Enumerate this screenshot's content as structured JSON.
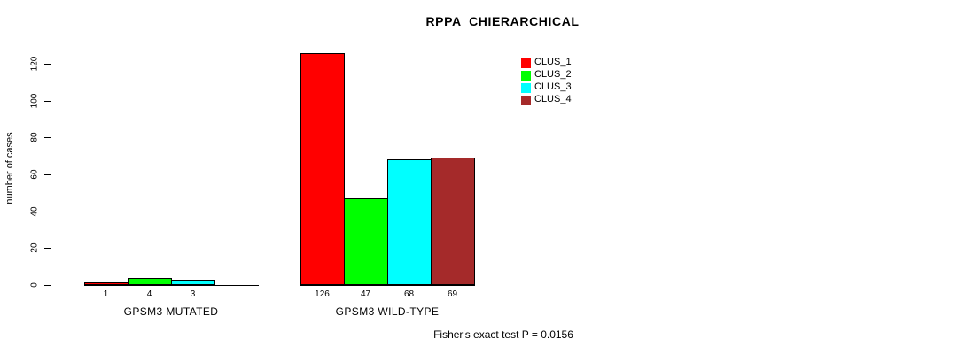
{
  "title": "RPPA_CHIERARCHICAL",
  "chart_data": {
    "type": "bar",
    "title": "RPPA_CHIERARCHICAL",
    "ylabel": "number of cases",
    "xlabel": "",
    "ylim": [
      0,
      120
    ],
    "yticks": [
      0,
      20,
      40,
      60,
      80,
      100,
      120
    ],
    "grid": false,
    "bar_border_color": "#000000",
    "series_names": [
      "CLUS_1",
      "CLUS_2",
      "CLUS_3",
      "CLUS_4"
    ],
    "bar_colors": [
      "#FF0000",
      "#00FF00",
      "#00FFFF",
      "#A52A2A"
    ],
    "categories": [
      "GPSM3 MUTATED",
      "GPSM3 WILD-TYPE"
    ],
    "groups": [
      {
        "label": "GPSM3 MUTATED",
        "values": [
          1,
          4,
          3,
          0
        ],
        "value_labels": [
          "1",
          "4",
          "3",
          ""
        ]
      },
      {
        "label": "GPSM3 WILD-TYPE",
        "values": [
          126,
          47,
          68,
          69
        ],
        "value_labels": [
          "126",
          "47",
          "68",
          "69"
        ]
      }
    ],
    "legend": {
      "position": "top-right",
      "entries": [
        {
          "label": "CLUS_1",
          "color": "#FF0000"
        },
        {
          "label": "CLUS_2",
          "color": "#00FF00"
        },
        {
          "label": "CLUS_3",
          "color": "#00FFFF"
        },
        {
          "label": "CLUS_4",
          "color": "#A52A2A"
        }
      ]
    },
    "annotation": "Fisher's exact test P = 0.0156"
  }
}
